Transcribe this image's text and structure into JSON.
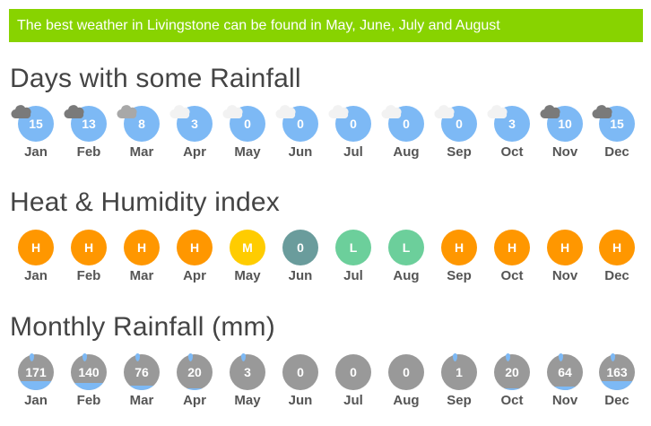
{
  "banner": "The best weather in Livingstone can be found in May, June, July and August",
  "sections": {
    "rainfall_days": {
      "title": "Days with some Rainfall",
      "items": [
        {
          "month": "Jan",
          "value": "15",
          "cloud": "dark"
        },
        {
          "month": "Feb",
          "value": "13",
          "cloud": "dark"
        },
        {
          "month": "Mar",
          "value": "8",
          "cloud": "grey"
        },
        {
          "month": "Apr",
          "value": "3",
          "cloud": "light"
        },
        {
          "month": "May",
          "value": "0",
          "cloud": "light"
        },
        {
          "month": "Jun",
          "value": "0",
          "cloud": "light"
        },
        {
          "month": "Jul",
          "value": "0",
          "cloud": "light"
        },
        {
          "month": "Aug",
          "value": "0",
          "cloud": "light"
        },
        {
          "month": "Sep",
          "value": "0",
          "cloud": "light"
        },
        {
          "month": "Oct",
          "value": "3",
          "cloud": "light"
        },
        {
          "month": "Nov",
          "value": "10",
          "cloud": "dark"
        },
        {
          "month": "Dec",
          "value": "15",
          "cloud": "dark"
        }
      ]
    },
    "heat_humidity": {
      "title": "Heat & Humidity index",
      "items": [
        {
          "month": "Jan",
          "value": "H",
          "color": "#ff9700"
        },
        {
          "month": "Feb",
          "value": "H",
          "color": "#ff9700"
        },
        {
          "month": "Mar",
          "value": "H",
          "color": "#ff9700"
        },
        {
          "month": "Apr",
          "value": "H",
          "color": "#ff9700"
        },
        {
          "month": "May",
          "value": "M",
          "color": "#ffcc00"
        },
        {
          "month": "Jun",
          "value": "0",
          "color": "#6a9c9c"
        },
        {
          "month": "Jul",
          "value": "L",
          "color": "#6ccf9b"
        },
        {
          "month": "Aug",
          "value": "L",
          "color": "#6ccf9b"
        },
        {
          "month": "Sep",
          "value": "H",
          "color": "#ff9700"
        },
        {
          "month": "Oct",
          "value": "H",
          "color": "#ff9700"
        },
        {
          "month": "Nov",
          "value": "H",
          "color": "#ff9700"
        },
        {
          "month": "Dec",
          "value": "H",
          "color": "#ff9700"
        }
      ]
    },
    "monthly_rainfall": {
      "title": "Monthly Rainfall (mm)",
      "items": [
        {
          "month": "Jan",
          "value": "171",
          "fill": 0.25
        },
        {
          "month": "Feb",
          "value": "140",
          "fill": 0.2
        },
        {
          "month": "Mar",
          "value": "76",
          "fill": 0.12
        },
        {
          "month": "Apr",
          "value": "20",
          "fill": 0.04
        },
        {
          "month": "May",
          "value": "3",
          "fill": 0.0
        },
        {
          "month": "Jun",
          "value": "0",
          "fill": 0.0
        },
        {
          "month": "Jul",
          "value": "0",
          "fill": 0.0
        },
        {
          "month": "Aug",
          "value": "0",
          "fill": 0.0
        },
        {
          "month": "Sep",
          "value": "1",
          "fill": 0.0
        },
        {
          "month": "Oct",
          "value": "20",
          "fill": 0.04
        },
        {
          "month": "Nov",
          "value": "64",
          "fill": 0.1
        },
        {
          "month": "Dec",
          "value": "163",
          "fill": 0.24
        }
      ]
    }
  },
  "colors": {
    "banner": "#88d300",
    "rain_blue": "#7db9f5",
    "rain_grey": "#999999",
    "cloud_dark": "#7a7a7a",
    "cloud_grey": "#a8a8a8",
    "cloud_light": "#f2f2f2"
  }
}
